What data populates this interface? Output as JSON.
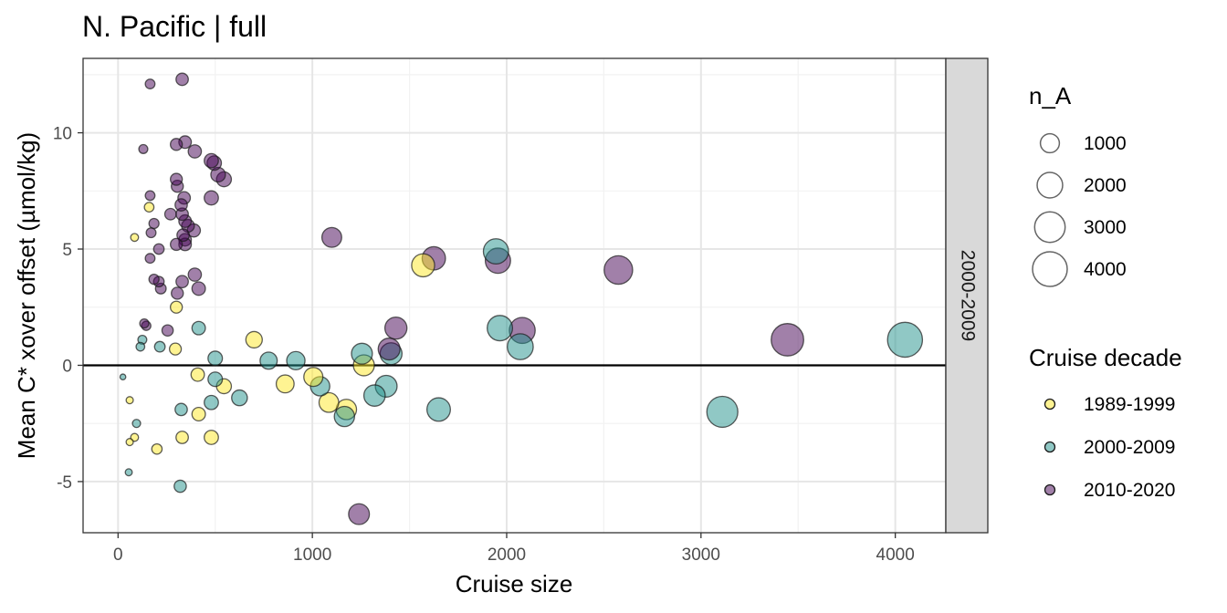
{
  "chart_data": {
    "type": "scatter",
    "title": "N. Pacific | full",
    "xlabel": "Cruise size",
    "ylabel": "Mean C* xover offset (µmol/kg)",
    "facet_label": "2000-2009",
    "xlim": [
      -180,
      4260
    ],
    "ylim": [
      -7.2,
      13.2
    ],
    "x_ticks": [
      0,
      1000,
      2000,
      3000,
      4000
    ],
    "x_tick_labels": [
      "0",
      "1000",
      "2000",
      "3000",
      "4000"
    ],
    "y_ticks": [
      -5,
      0,
      5,
      10
    ],
    "y_tick_labels": [
      "-5",
      "0",
      "5",
      "10"
    ],
    "hline": 0,
    "grid": true,
    "size_legend": {
      "title": "n_A",
      "values": [
        1000,
        2000,
        3000,
        4000
      ],
      "labels": [
        "1000",
        "2000",
        "3000",
        "4000"
      ]
    },
    "color_legend": {
      "title": "Cruise decade",
      "placement": "right"
    },
    "series": [
      {
        "name": "1989-1999",
        "color": "#fde725",
        "points": [
          {
            "x": 85,
            "y": 5.5
          },
          {
            "x": 160,
            "y": 6.8
          },
          {
            "x": 300,
            "y": 2.5
          },
          {
            "x": 295,
            "y": 0.7
          },
          {
            "x": 60,
            "y": -1.5
          },
          {
            "x": 85,
            "y": -3.1
          },
          {
            "x": 60,
            "y": -3.3
          },
          {
            "x": 200,
            "y": -3.6
          },
          {
            "x": 330,
            "y": -3.1
          },
          {
            "x": 480,
            "y": -3.1
          },
          {
            "x": 415,
            "y": -2.1
          },
          {
            "x": 410,
            "y": -0.4
          },
          {
            "x": 545,
            "y": -0.9
          },
          {
            "x": 700,
            "y": 1.1
          },
          {
            "x": 860,
            "y": -0.8
          },
          {
            "x": 1005,
            "y": -0.5
          },
          {
            "x": 1085,
            "y": -1.6
          },
          {
            "x": 1175,
            "y": -1.9
          },
          {
            "x": 1265,
            "y": 0.0
          },
          {
            "x": 1570,
            "y": 4.3
          }
        ]
      },
      {
        "name": "2000-2009",
        "color": "#21918c",
        "points": [
          {
            "x": 25,
            "y": -0.5
          },
          {
            "x": 55,
            "y": -4.6
          },
          {
            "x": 95,
            "y": -2.5
          },
          {
            "x": 115,
            "y": 0.8
          },
          {
            "x": 125,
            "y": 1.1
          },
          {
            "x": 215,
            "y": 0.8
          },
          {
            "x": 320,
            "y": -5.2
          },
          {
            "x": 325,
            "y": -1.9
          },
          {
            "x": 415,
            "y": 1.6
          },
          {
            "x": 480,
            "y": -1.6
          },
          {
            "x": 500,
            "y": -0.6
          },
          {
            "x": 500,
            "y": 0.3
          },
          {
            "x": 625,
            "y": -1.4
          },
          {
            "x": 775,
            "y": 0.2
          },
          {
            "x": 915,
            "y": 0.2
          },
          {
            "x": 1040,
            "y": -0.9
          },
          {
            "x": 1165,
            "y": -2.2
          },
          {
            "x": 1255,
            "y": 0.5
          },
          {
            "x": 1320,
            "y": -1.3
          },
          {
            "x": 1380,
            "y": -0.9
          },
          {
            "x": 1405,
            "y": 0.5
          },
          {
            "x": 1650,
            "y": -1.9
          },
          {
            "x": 1945,
            "y": 4.9
          },
          {
            "x": 1965,
            "y": 1.6
          },
          {
            "x": 2070,
            "y": 0.8
          },
          {
            "x": 3110,
            "y": -2.0
          },
          {
            "x": 4050,
            "y": 1.1
          }
        ]
      },
      {
        "name": "2010-2020",
        "color": "#440154",
        "points": [
          {
            "x": 165,
            "y": 12.1
          },
          {
            "x": 330,
            "y": 12.3
          },
          {
            "x": 130,
            "y": 9.3
          },
          {
            "x": 300,
            "y": 9.5
          },
          {
            "x": 345,
            "y": 9.6
          },
          {
            "x": 395,
            "y": 9.2
          },
          {
            "x": 480,
            "y": 8.8
          },
          {
            "x": 495,
            "y": 8.7
          },
          {
            "x": 515,
            "y": 8.2
          },
          {
            "x": 545,
            "y": 8.0
          },
          {
            "x": 300,
            "y": 8.0
          },
          {
            "x": 305,
            "y": 7.7
          },
          {
            "x": 165,
            "y": 7.3
          },
          {
            "x": 340,
            "y": 7.2
          },
          {
            "x": 480,
            "y": 7.2
          },
          {
            "x": 325,
            "y": 6.9
          },
          {
            "x": 270,
            "y": 6.5
          },
          {
            "x": 330,
            "y": 6.5
          },
          {
            "x": 185,
            "y": 6.1
          },
          {
            "x": 345,
            "y": 6.2
          },
          {
            "x": 360,
            "y": 6.0
          },
          {
            "x": 390,
            "y": 5.8
          },
          {
            "x": 170,
            "y": 5.7
          },
          {
            "x": 335,
            "y": 5.6
          },
          {
            "x": 345,
            "y": 5.4
          },
          {
            "x": 300,
            "y": 5.2
          },
          {
            "x": 345,
            "y": 5.2
          },
          {
            "x": 210,
            "y": 5.0
          },
          {
            "x": 165,
            "y": 4.6
          },
          {
            "x": 185,
            "y": 3.7
          },
          {
            "x": 210,
            "y": 3.6
          },
          {
            "x": 330,
            "y": 3.6
          },
          {
            "x": 395,
            "y": 3.9
          },
          {
            "x": 220,
            "y": 3.3
          },
          {
            "x": 415,
            "y": 3.3
          },
          {
            "x": 305,
            "y": 3.1
          },
          {
            "x": 135,
            "y": 1.8
          },
          {
            "x": 145,
            "y": 1.7
          },
          {
            "x": 255,
            "y": 1.5
          },
          {
            "x": 1100,
            "y": 5.5
          },
          {
            "x": 1625,
            "y": 4.6
          },
          {
            "x": 1955,
            "y": 4.5
          },
          {
            "x": 2575,
            "y": 4.1
          },
          {
            "x": 1430,
            "y": 1.6
          },
          {
            "x": 1395,
            "y": 0.7
          },
          {
            "x": 2080,
            "y": 1.5
          },
          {
            "x": 3445,
            "y": 1.1
          },
          {
            "x": 1240,
            "y": -6.4
          }
        ]
      }
    ]
  }
}
